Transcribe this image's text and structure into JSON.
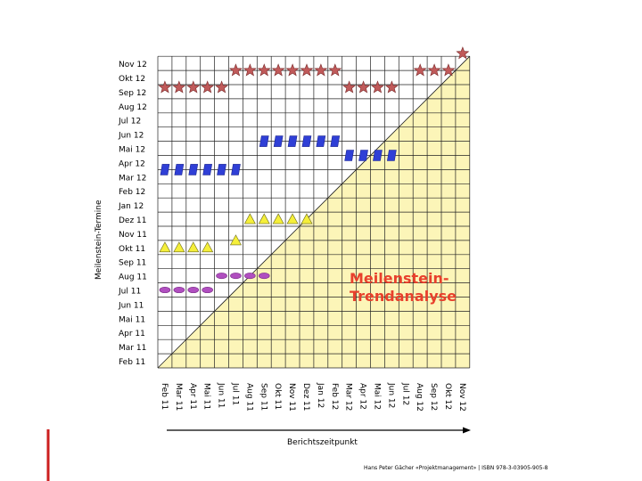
{
  "chart_data": {
    "type": "scatter",
    "title": "",
    "xlabel": "Berichtszeitpunkt",
    "ylabel": "Meilenstein-Termine",
    "annotation": [
      "Meilenstein-",
      "Trendanalyse"
    ],
    "x_ticks": [
      "Feb 11",
      "Mar 11",
      "Apr 11",
      "Mai 11",
      "Jun 11",
      "Jul 11",
      "Aug 11",
      "Sep 11",
      "Okt 11",
      "Nov 11",
      "Dez 11",
      "Jan 12",
      "Feb 12",
      "Mar 12",
      "Apr 12",
      "Mai 12",
      "Jun 12",
      "Jul 12",
      "Aug 12",
      "Sep 12",
      "Okt 12",
      "Nov 12"
    ],
    "y_ticks": [
      "Feb 11",
      "Mar 11",
      "Apr 11",
      "Mai 11",
      "Jun 11",
      "Jul 11",
      "Aug 11",
      "Sep 11",
      "Okt 11",
      "Nov 11",
      "Dez 11",
      "Jan 12",
      "Feb 12",
      "Mar 12",
      "Apr 12",
      "Mai 12",
      "Jun 12",
      "Jul 12",
      "Aug 12",
      "Sep 12",
      "Okt 12",
      "Nov 12"
    ],
    "series": [
      {
        "marker": "ellipse",
        "color": "#b04fc0",
        "x": [
          0,
          1,
          2,
          3
        ],
        "y": [
          5.5,
          5.5,
          5.5,
          5.5
        ]
      },
      {
        "marker": "ellipse",
        "color": "#b04fc0",
        "x": [
          4,
          5,
          6,
          7
        ],
        "y": [
          6.5,
          6.5,
          6.5,
          6.5
        ]
      },
      {
        "marker": "triangle",
        "color": "#f5ef3a",
        "x": [
          0,
          1,
          2,
          3,
          5
        ],
        "y": [
          8.5,
          8.5,
          8.5,
          8.5,
          9.0
        ]
      },
      {
        "marker": "triangle",
        "color": "#f5ef3a",
        "x": [
          6,
          7,
          8,
          9,
          10
        ],
        "y": [
          10.5,
          10.5,
          10.5,
          10.5,
          10.5
        ]
      },
      {
        "marker": "parallelogram",
        "color": "#2f3fd6",
        "x": [
          0,
          1,
          2,
          3,
          4,
          5
        ],
        "y": [
          14.0,
          14.0,
          14.0,
          14.0,
          14.0,
          14.0
        ]
      },
      {
        "marker": "parallelogram",
        "color": "#2f3fd6",
        "x": [
          7,
          8,
          9,
          10,
          11,
          12
        ],
        "y": [
          16.0,
          16.0,
          16.0,
          16.0,
          16.0,
          16.0
        ]
      },
      {
        "marker": "parallelogram",
        "color": "#2f3fd6",
        "x": [
          13,
          14,
          15,
          16
        ],
        "y": [
          15.0,
          15.0,
          15.0,
          15.0
        ]
      },
      {
        "marker": "star",
        "color": "#c05a5a",
        "x": [
          0,
          1,
          2,
          3,
          4
        ],
        "y": [
          19.8,
          19.8,
          19.8,
          19.8,
          19.8
        ]
      },
      {
        "marker": "star",
        "color": "#c05a5a",
        "x": [
          5,
          6,
          7,
          8,
          9,
          10,
          11,
          12
        ],
        "y": [
          21.0,
          21.0,
          21.0,
          21.0,
          21.0,
          21.0,
          21.0,
          21.0
        ]
      },
      {
        "marker": "star",
        "color": "#c05a5a",
        "x": [
          13,
          14,
          15,
          16
        ],
        "y": [
          19.8,
          19.8,
          19.8,
          19.8
        ]
      },
      {
        "marker": "star",
        "color": "#c05a5a",
        "x": [
          18,
          19,
          20,
          21
        ],
        "y": [
          21.0,
          21.0,
          21.0,
          22.2
        ]
      }
    ],
    "grid": true,
    "colors": {
      "diagonal_fill": "#fcf5b8",
      "grid": "#222222",
      "axis_accent": "#cc1f1f"
    }
  },
  "footer": "Hans Peter Gächer «Projektmanagement» | ISBN 978-3-03905-905-8"
}
